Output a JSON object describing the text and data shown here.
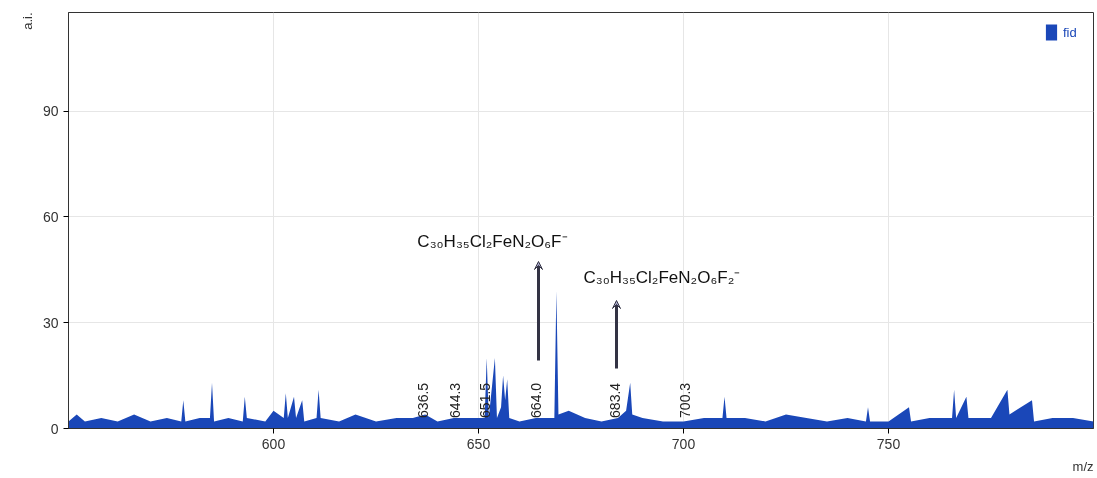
{
  "chart_data": {
    "type": "area",
    "xlabel": "m/z",
    "ylabel": "a.i.",
    "xlim": [
      550,
      800
    ],
    "ylim": [
      0,
      118
    ],
    "xticks": [
      600,
      650,
      700,
      750
    ],
    "yticks": [
      0,
      30,
      60,
      90
    ],
    "grid": true,
    "legend": "top right",
    "series": [
      {
        "name": "fid",
        "color": "#1a47b8",
        "x": [
          550,
          552,
          554,
          558,
          562,
          566,
          570,
          574,
          577.5,
          578,
          578.5,
          582,
          584.5,
          585,
          585.5,
          589,
          592.5,
          593,
          593.5,
          598,
          600,
          602.5,
          603,
          603.5,
          605,
          605.5,
          607,
          607.5,
          610.5,
          611,
          611.5,
          616,
          620,
          625,
          630,
          634,
          637,
          640,
          644,
          648,
          651.5,
          652,
          652.5,
          654,
          654.5,
          655.5,
          656,
          656.5,
          657,
          657.5,
          660,
          664,
          668.5,
          669,
          669.5,
          672,
          676,
          680,
          684,
          686,
          687,
          687.5,
          690,
          695,
          700,
          705,
          709.5,
          710,
          710.5,
          715,
          720,
          725,
          730,
          735,
          740,
          744.5,
          745,
          745.5,
          750,
          755,
          755.5,
          760,
          765.5,
          766,
          766.5,
          769,
          769.5,
          775,
          779,
          779.5,
          785,
          785.5,
          790,
          795,
          800
        ],
        "values": [
          2,
          4,
          2,
          3,
          2,
          4,
          2,
          3,
          2,
          8,
          2,
          3,
          3,
          13,
          2,
          3,
          2,
          9,
          3,
          2,
          5,
          3,
          10,
          3,
          9,
          3,
          8,
          2,
          3,
          11,
          3,
          2,
          4,
          2,
          3,
          3,
          4,
          2,
          3,
          3,
          3,
          20,
          3,
          20,
          3,
          6,
          15,
          8,
          14,
          3,
          2,
          3,
          3,
          39,
          4,
          5,
          3,
          2,
          3,
          5,
          13,
          4,
          3,
          2,
          2,
          3,
          3,
          9,
          3,
          3,
          2,
          4,
          3,
          2,
          3,
          2,
          6,
          2,
          2,
          6,
          2,
          3,
          3,
          11,
          3,
          9,
          3,
          3,
          11,
          4,
          8,
          2,
          3,
          3,
          2
        ]
      }
    ],
    "annotations": [
      "C₃₀H₃₅Cl₂FeN₂O₆F⁻",
      "C₃₀H₃₅Cl₂FeN₂O₆F₂⁻",
      {
        "text": "636.5",
        "x": 636.5,
        "y": 3
      },
      {
        "text": "644.3",
        "x": 644.3,
        "y": 3
      },
      {
        "text": "651.5",
        "x": 651.5,
        "y": 3
      },
      {
        "text": "664.0",
        "x": 664.0,
        "y": 3
      },
      {
        "text": "683.4",
        "x": 683.4,
        "y": 3
      },
      {
        "text": "700.3",
        "x": 700.3,
        "y": 3
      }
    ]
  }
}
